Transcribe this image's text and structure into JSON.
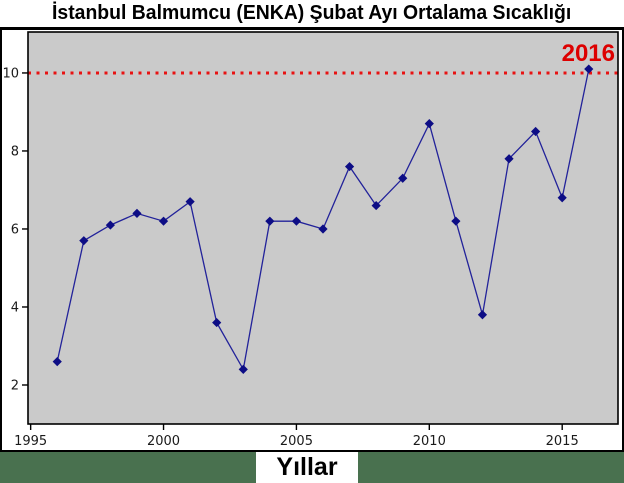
{
  "page": {
    "background_color": "#49714f"
  },
  "title_bar": {
    "title": "İstanbul Balmumcu (ENKA) Şubat Ayı Ortalama Sıcaklığı"
  },
  "x_axis": {
    "label": "Yıllar"
  },
  "chart_data": {
    "type": "line",
    "title": "İstanbul Balmumcu (ENKA) Şubat Ayı Ortalama Sıcaklığı",
    "xlabel": "Yıllar",
    "ylabel": "",
    "x": [
      1996,
      1997,
      1998,
      1999,
      2000,
      2001,
      2002,
      2003,
      2004,
      2005,
      2006,
      2007,
      2008,
      2009,
      2010,
      2011,
      2012,
      2013,
      2014,
      2015,
      2016
    ],
    "y": [
      2.6,
      5.7,
      6.1,
      6.4,
      6.2,
      6.7,
      3.6,
      2.4,
      6.2,
      6.2,
      6.0,
      7.6,
      6.6,
      7.3,
      8.7,
      6.2,
      3.8,
      7.8,
      8.5,
      6.8,
      10.1
    ],
    "xlim": [
      1994.9,
      2017.1
    ],
    "ylim": [
      1.0,
      11.05
    ],
    "x_ticks": [
      1995,
      2000,
      2005,
      2010,
      2015
    ],
    "y_ticks": [
      2,
      4,
      6,
      8,
      10
    ],
    "grid": false,
    "legend": null,
    "panel_background": "#cacaca",
    "line_color": "#22229a",
    "marker": "diamond",
    "marker_color": "#0d0d85",
    "reference_line": {
      "y": 10,
      "color": "#e81212",
      "style": "dotted"
    },
    "annotation": {
      "text": "2016",
      "color": "#dd0000",
      "position": "top-right"
    }
  }
}
